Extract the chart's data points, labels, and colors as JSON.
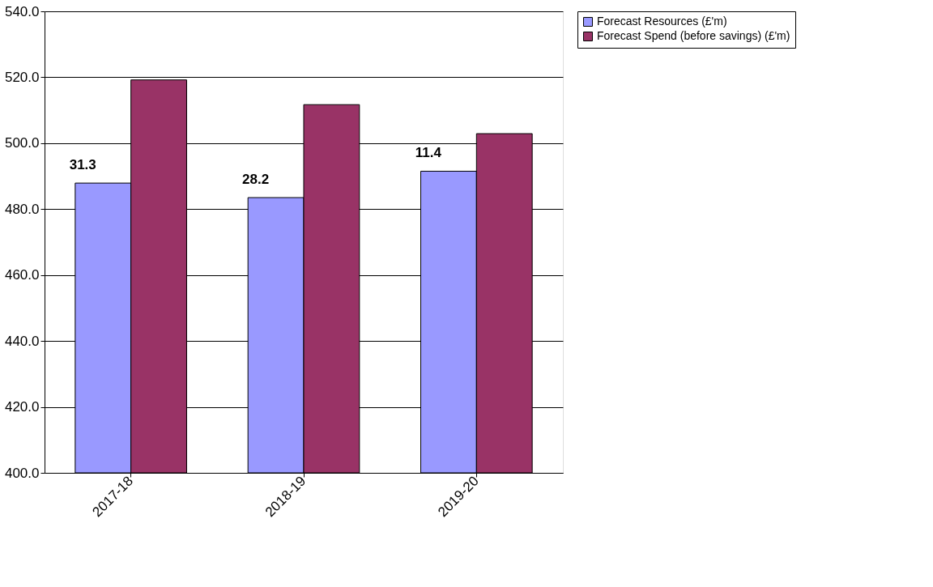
{
  "chart_data": {
    "type": "bar",
    "categories": [
      "2017-18",
      "2018-19",
      "2019-20"
    ],
    "series": [
      {
        "name": "Forecast Resources (£'m)",
        "color": "#9999ff",
        "values": [
          487.9,
          483.5,
          491.5
        ]
      },
      {
        "name": "Forecast Spend (before savings) (£'m)",
        "color": "#993366",
        "values": [
          519.2,
          511.7,
          502.9
        ]
      }
    ],
    "ylim": [
      400,
      540
    ],
    "yticks": [
      {
        "value": 400,
        "label": "400.0"
      },
      {
        "value": 420,
        "label": "420.0"
      },
      {
        "value": 440,
        "label": "440.0"
      },
      {
        "value": 460,
        "label": "460.0"
      },
      {
        "value": 480,
        "label": "480.0"
      },
      {
        "value": 500,
        "label": "500.0"
      },
      {
        "value": 520,
        "label": "520.0"
      },
      {
        "value": 540,
        "label": "540.0"
      }
    ],
    "grid": "y",
    "legend": "right",
    "annotations": [
      "31.3",
      "28.2",
      "11.4"
    ]
  }
}
